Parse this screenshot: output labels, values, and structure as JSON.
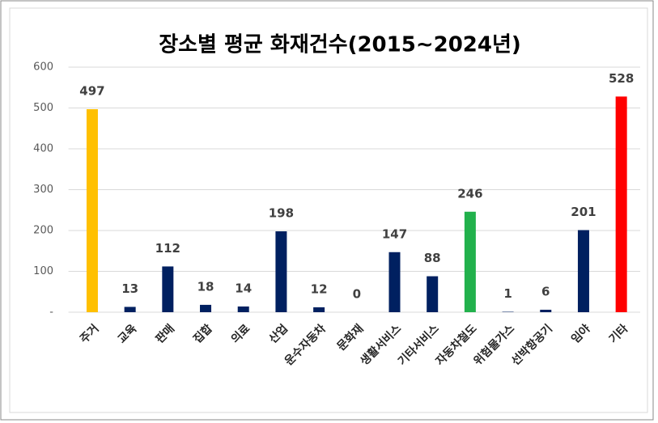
{
  "chart_data": {
    "type": "bar",
    "title": "장소별 평균 화재건수(2015~2024년)",
    "categories": [
      "주거",
      "교육",
      "판매",
      "집합",
      "의료",
      "산업",
      "운수자동차",
      "문화재",
      "생활서비스",
      "기타서비스",
      "자동차철도",
      "위험물가스",
      "선박항공기",
      "임야",
      "기타"
    ],
    "values": [
      497,
      13,
      112,
      18,
      14,
      198,
      12,
      0,
      147,
      88,
      246,
      1,
      6,
      201,
      528
    ],
    "colors": [
      "#ffc000",
      "#002060",
      "#002060",
      "#002060",
      "#002060",
      "#002060",
      "#002060",
      "#002060",
      "#002060",
      "#002060",
      "#22b14c",
      "#002060",
      "#002060",
      "#002060",
      "#ff0000"
    ],
    "ylim": [
      0,
      600
    ],
    "yticks": [
      {
        "value": 0,
        "label": "-"
      },
      100,
      200,
      300,
      400,
      500,
      600
    ],
    "grid": true
  }
}
